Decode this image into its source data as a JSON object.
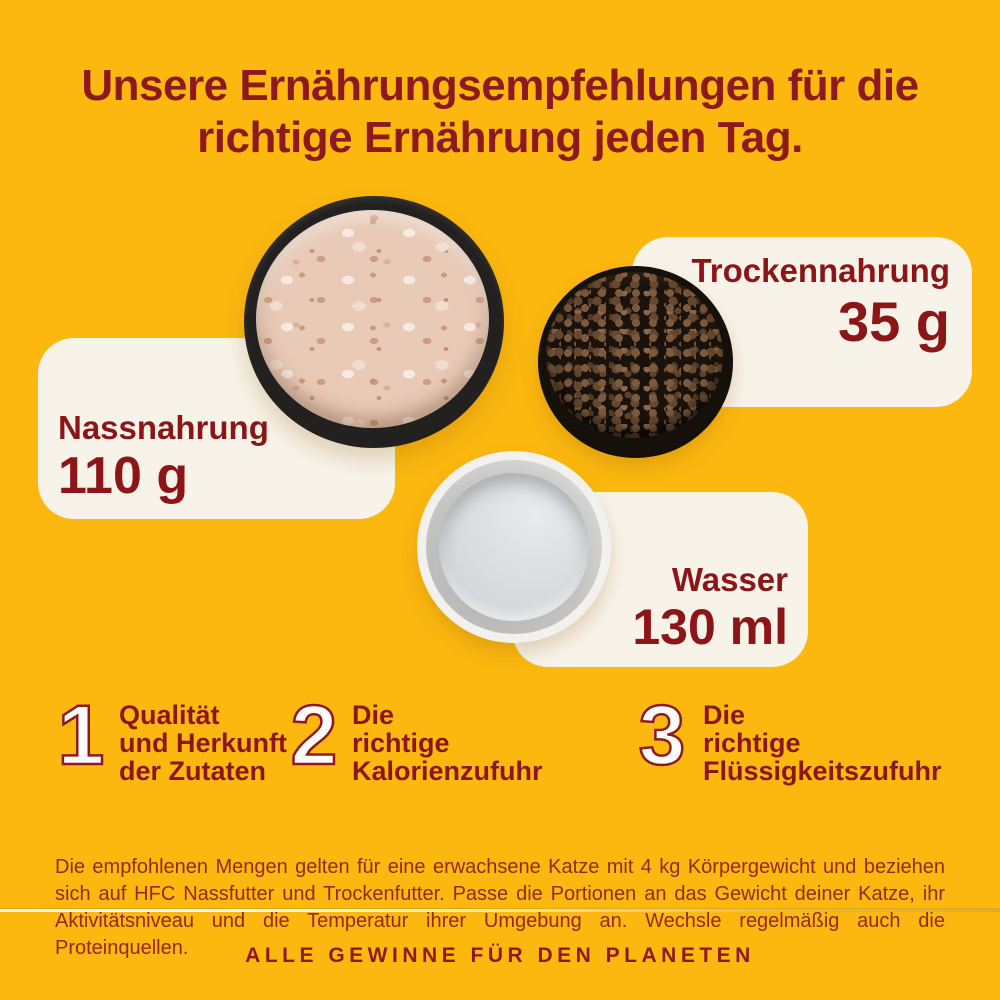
{
  "colors": {
    "background": "#FCB80F",
    "accent_maroon": "#8E191D",
    "card_cream": "#F8F3E9",
    "disclaimer_red": "#96281E"
  },
  "title": {
    "line1": "Unsere Ernährungsempfehlungen für die",
    "line2": "richtige Ernährung jeden Tag."
  },
  "portions": [
    {
      "id": "wet",
      "label": "Nassnahrung",
      "amount": "110 g",
      "photo": "black bowl with shredded wet cat food"
    },
    {
      "id": "dry",
      "label": "Trockennahrung",
      "amount": "35 g",
      "photo": "black bowl with brown kibble"
    },
    {
      "id": "water",
      "label": "Wasser",
      "amount": "130 ml",
      "photo": "white bowl with water"
    }
  ],
  "principles": [
    {
      "number": "1",
      "lines": [
        "Qualität",
        "und Herkunft",
        "der Zutaten"
      ]
    },
    {
      "number": "2",
      "lines": [
        "Die",
        "richtige",
        "Kalorienzufuhr"
      ]
    },
    {
      "number": "3",
      "lines": [
        "Die",
        "richtige",
        "Flüssigkeitszufuhr"
      ]
    }
  ],
  "disclaimer": "Die empfohlenen Mengen gelten für eine erwachsene Katze mit 4 kg Körpergewicht und beziehen sich auf HFC Nassfutter und Trockenfutter. Passe die Portionen an das Gewicht deiner Katze, ihr Aktivitätsniveau und die Temperatur ihrer Umgebung an. Wechsle regelmäßig auch die Proteinquellen.",
  "footer": "ALLE GEWINNE FÜR DEN PLANETEN"
}
